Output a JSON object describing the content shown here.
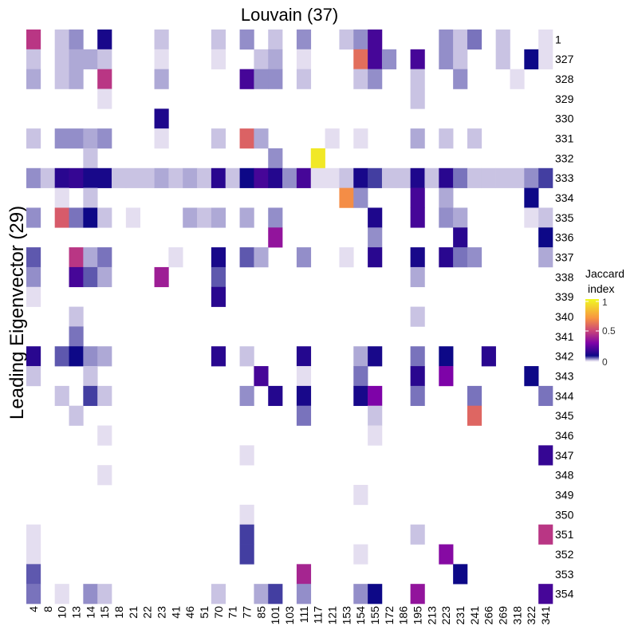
{
  "chart_data": {
    "type": "heatmap",
    "title": "Louvain (37)",
    "ylabel": "Leading Eigenvector (29)",
    "xlabel": "",
    "x_categories": [
      "4",
      "8",
      "10",
      "13",
      "14",
      "15",
      "18",
      "21",
      "22",
      "23",
      "41",
      "46",
      "51",
      "70",
      "71",
      "77",
      "85",
      "101",
      "103",
      "111",
      "117",
      "121",
      "153",
      "154",
      "155",
      "172",
      "186",
      "195",
      "213",
      "223",
      "231",
      "241",
      "266",
      "269",
      "318",
      "322",
      "341"
    ],
    "y_categories": [
      "1",
      "327",
      "328",
      "329",
      "330",
      "331",
      "332",
      "333",
      "334",
      "335",
      "336",
      "337",
      "338",
      "339",
      "340",
      "341",
      "342",
      "343",
      "344",
      "345",
      "346",
      "347",
      "348",
      "349",
      "350",
      "351",
      "352",
      "353",
      "354"
    ],
    "legend": {
      "title_line1": "Jaccard",
      "title_line2": "index",
      "ticks": [
        "1",
        "0.5",
        "0"
      ],
      "range": [
        0,
        1
      ]
    },
    "grid": false,
    "cells": [
      {
        "y": "1",
        "x": "4",
        "v": 0.45
      },
      {
        "y": "1",
        "x": "10",
        "v": 0.03
      },
      {
        "y": "1",
        "x": "13",
        "v": 0.05
      },
      {
        "y": "1",
        "x": "15",
        "v": 0.12
      },
      {
        "y": "1",
        "x": "23",
        "v": 0.03
      },
      {
        "y": "1",
        "x": "70",
        "v": 0.03
      },
      {
        "y": "1",
        "x": "77",
        "v": 0.05
      },
      {
        "y": "1",
        "x": "101",
        "v": 0.03
      },
      {
        "y": "1",
        "x": "111",
        "v": 0.05
      },
      {
        "y": "1",
        "x": "153",
        "v": 0.03
      },
      {
        "y": "1",
        "x": "154",
        "v": 0.05
      },
      {
        "y": "1",
        "x": "155",
        "v": 0.2
      },
      {
        "y": "1",
        "x": "223",
        "v": 0.05
      },
      {
        "y": "1",
        "x": "231",
        "v": 0.03
      },
      {
        "y": "1",
        "x": "241",
        "v": 0.06
      },
      {
        "y": "1",
        "x": "269",
        "v": 0.03
      },
      {
        "y": "1",
        "x": "341",
        "v": 0.02
      },
      {
        "y": "327",
        "x": "4",
        "v": 0.03
      },
      {
        "y": "327",
        "x": "10",
        "v": 0.03
      },
      {
        "y": "327",
        "x": "13",
        "v": 0.04
      },
      {
        "y": "327",
        "x": "14",
        "v": 0.04
      },
      {
        "y": "327",
        "x": "15",
        "v": 0.03
      },
      {
        "y": "327",
        "x": "23",
        "v": 0.02
      },
      {
        "y": "327",
        "x": "70",
        "v": 0.02
      },
      {
        "y": "327",
        "x": "85",
        "v": 0.03
      },
      {
        "y": "327",
        "x": "101",
        "v": 0.04
      },
      {
        "y": "327",
        "x": "111",
        "v": 0.02
      },
      {
        "y": "327",
        "x": "154",
        "v": 0.6
      },
      {
        "y": "327",
        "x": "155",
        "v": 0.2
      },
      {
        "y": "327",
        "x": "172",
        "v": 0.05
      },
      {
        "y": "327",
        "x": "195",
        "v": 0.2
      },
      {
        "y": "327",
        "x": "223",
        "v": 0.05
      },
      {
        "y": "327",
        "x": "231",
        "v": 0.03
      },
      {
        "y": "327",
        "x": "269",
        "v": 0.03
      },
      {
        "y": "327",
        "x": "322",
        "v": 0.1
      },
      {
        "y": "327",
        "x": "341",
        "v": 0.02
      },
      {
        "y": "328",
        "x": "4",
        "v": 0.04
      },
      {
        "y": "328",
        "x": "10",
        "v": 0.03
      },
      {
        "y": "328",
        "x": "13",
        "v": 0.04
      },
      {
        "y": "328",
        "x": "15",
        "v": 0.45
      },
      {
        "y": "328",
        "x": "23",
        "v": 0.04
      },
      {
        "y": "328",
        "x": "77",
        "v": 0.2
      },
      {
        "y": "328",
        "x": "85",
        "v": 0.05
      },
      {
        "y": "328",
        "x": "101",
        "v": 0.05
      },
      {
        "y": "328",
        "x": "111",
        "v": 0.03
      },
      {
        "y": "328",
        "x": "154",
        "v": 0.03
      },
      {
        "y": "328",
        "x": "155",
        "v": 0.05
      },
      {
        "y": "328",
        "x": "195",
        "v": 0.03
      },
      {
        "y": "328",
        "x": "231",
        "v": 0.05
      },
      {
        "y": "328",
        "x": "318",
        "v": 0.02
      },
      {
        "y": "329",
        "x": "15",
        "v": 0.02
      },
      {
        "y": "329",
        "x": "195",
        "v": 0.03
      },
      {
        "y": "330",
        "x": "23",
        "v": 0.13
      },
      {
        "y": "331",
        "x": "4",
        "v": 0.03
      },
      {
        "y": "331",
        "x": "10",
        "v": 0.05
      },
      {
        "y": "331",
        "x": "13",
        "v": 0.05
      },
      {
        "y": "331",
        "x": "14",
        "v": 0.04
      },
      {
        "y": "331",
        "x": "15",
        "v": 0.05
      },
      {
        "y": "331",
        "x": "23",
        "v": 0.02
      },
      {
        "y": "331",
        "x": "70",
        "v": 0.03
      },
      {
        "y": "331",
        "x": "77",
        "v": 0.57
      },
      {
        "y": "331",
        "x": "85",
        "v": 0.04
      },
      {
        "y": "331",
        "x": "121",
        "v": 0.02
      },
      {
        "y": "331",
        "x": "154",
        "v": 0.02
      },
      {
        "y": "331",
        "x": "195",
        "v": 0.04
      },
      {
        "y": "331",
        "x": "223",
        "v": 0.03
      },
      {
        "y": "331",
        "x": "241",
        "v": 0.03
      },
      {
        "y": "332",
        "x": "14",
        "v": 0.03
      },
      {
        "y": "332",
        "x": "101",
        "v": 0.05
      },
      {
        "y": "332",
        "x": "117",
        "v": 0.95
      },
      {
        "y": "333",
        "x": "4",
        "v": 0.05
      },
      {
        "y": "333",
        "x": "8",
        "v": 0.03
      },
      {
        "y": "333",
        "x": "10",
        "v": 0.15
      },
      {
        "y": "333",
        "x": "13",
        "v": 0.17
      },
      {
        "y": "333",
        "x": "14",
        "v": 0.12
      },
      {
        "y": "333",
        "x": "15",
        "v": 0.12
      },
      {
        "y": "333",
        "x": "18",
        "v": 0.03
      },
      {
        "y": "333",
        "x": "21",
        "v": 0.03
      },
      {
        "y": "333",
        "x": "22",
        "v": 0.03
      },
      {
        "y": "333",
        "x": "23",
        "v": 0.04
      },
      {
        "y": "333",
        "x": "41",
        "v": 0.03
      },
      {
        "y": "333",
        "x": "46",
        "v": 0.04
      },
      {
        "y": "333",
        "x": "51",
        "v": 0.03
      },
      {
        "y": "333",
        "x": "70",
        "v": 0.15
      },
      {
        "y": "333",
        "x": "71",
        "v": 0.03
      },
      {
        "y": "333",
        "x": "77",
        "v": 0.1
      },
      {
        "y": "333",
        "x": "85",
        "v": 0.2
      },
      {
        "y": "333",
        "x": "101",
        "v": 0.14
      },
      {
        "y": "333",
        "x": "103",
        "v": 0.05
      },
      {
        "y": "333",
        "x": "111",
        "v": 0.2
      },
      {
        "y": "333",
        "x": "117",
        "v": 0.02
      },
      {
        "y": "333",
        "x": "121",
        "v": 0.02
      },
      {
        "y": "333",
        "x": "153",
        "v": 0.03
      },
      {
        "y": "333",
        "x": "154",
        "v": 0.12
      },
      {
        "y": "333",
        "x": "155",
        "v": 0.08
      },
      {
        "y": "333",
        "x": "172",
        "v": 0.03
      },
      {
        "y": "333",
        "x": "186",
        "v": 0.03
      },
      {
        "y": "333",
        "x": "195",
        "v": 0.13
      },
      {
        "y": "333",
        "x": "213",
        "v": 0.03
      },
      {
        "y": "333",
        "x": "223",
        "v": 0.15
      },
      {
        "y": "333",
        "x": "231",
        "v": 0.06
      },
      {
        "y": "333",
        "x": "241",
        "v": 0.03
      },
      {
        "y": "333",
        "x": "266",
        "v": 0.03
      },
      {
        "y": "333",
        "x": "269",
        "v": 0.03
      },
      {
        "y": "333",
        "x": "318",
        "v": 0.03
      },
      {
        "y": "333",
        "x": "322",
        "v": 0.05
      },
      {
        "y": "333",
        "x": "341",
        "v": 0.08
      },
      {
        "y": "334",
        "x": "10",
        "v": 0.02
      },
      {
        "y": "334",
        "x": "14",
        "v": 0.03
      },
      {
        "y": "334",
        "x": "153",
        "v": 0.68
      },
      {
        "y": "334",
        "x": "154",
        "v": 0.05
      },
      {
        "y": "334",
        "x": "195",
        "v": 0.2
      },
      {
        "y": "334",
        "x": "223",
        "v": 0.04
      },
      {
        "y": "334",
        "x": "322",
        "v": 0.1
      },
      {
        "y": "335",
        "x": "4",
        "v": 0.05
      },
      {
        "y": "335",
        "x": "10",
        "v": 0.55
      },
      {
        "y": "335",
        "x": "13",
        "v": 0.06
      },
      {
        "y": "335",
        "x": "14",
        "v": 0.1
      },
      {
        "y": "335",
        "x": "15",
        "v": 0.03
      },
      {
        "y": "335",
        "x": "21",
        "v": 0.02
      },
      {
        "y": "335",
        "x": "46",
        "v": 0.04
      },
      {
        "y": "335",
        "x": "51",
        "v": 0.03
      },
      {
        "y": "335",
        "x": "70",
        "v": 0.04
      },
      {
        "y": "335",
        "x": "77",
        "v": 0.04
      },
      {
        "y": "335",
        "x": "101",
        "v": 0.05
      },
      {
        "y": "335",
        "x": "155",
        "v": 0.13
      },
      {
        "y": "335",
        "x": "195",
        "v": 0.2
      },
      {
        "y": "335",
        "x": "223",
        "v": 0.05
      },
      {
        "y": "335",
        "x": "231",
        "v": 0.04
      },
      {
        "y": "335",
        "x": "322",
        "v": 0.02
      },
      {
        "y": "335",
        "x": "341",
        "v": 0.03
      },
      {
        "y": "336",
        "x": "101",
        "v": 0.35
      },
      {
        "y": "336",
        "x": "155",
        "v": 0.05
      },
      {
        "y": "336",
        "x": "231",
        "v": 0.15
      },
      {
        "y": "336",
        "x": "341",
        "v": 0.1
      },
      {
        "y": "337",
        "x": "4",
        "v": 0.07
      },
      {
        "y": "337",
        "x": "13",
        "v": 0.45
      },
      {
        "y": "337",
        "x": "14",
        "v": 0.04
      },
      {
        "y": "337",
        "x": "15",
        "v": 0.06
      },
      {
        "y": "337",
        "x": "41",
        "v": 0.02
      },
      {
        "y": "337",
        "x": "70",
        "v": 0.12
      },
      {
        "y": "337",
        "x": "77",
        "v": 0.07
      },
      {
        "y": "337",
        "x": "85",
        "v": 0.04
      },
      {
        "y": "337",
        "x": "111",
        "v": 0.05
      },
      {
        "y": "337",
        "x": "153",
        "v": 0.02
      },
      {
        "y": "337",
        "x": "155",
        "v": 0.15
      },
      {
        "y": "337",
        "x": "195",
        "v": 0.12
      },
      {
        "y": "337",
        "x": "223",
        "v": 0.15
      },
      {
        "y": "337",
        "x": "231",
        "v": 0.06
      },
      {
        "y": "337",
        "x": "241",
        "v": 0.05
      },
      {
        "y": "337",
        "x": "341",
        "v": 0.04
      },
      {
        "y": "338",
        "x": "4",
        "v": 0.05
      },
      {
        "y": "338",
        "x": "13",
        "v": 0.2
      },
      {
        "y": "338",
        "x": "14",
        "v": 0.07
      },
      {
        "y": "338",
        "x": "15",
        "v": 0.04
      },
      {
        "y": "338",
        "x": "23",
        "v": 0.38
      },
      {
        "y": "338",
        "x": "70",
        "v": 0.07
      },
      {
        "y": "338",
        "x": "195",
        "v": 0.04
      },
      {
        "y": "339",
        "x": "4",
        "v": 0.02
      },
      {
        "y": "339",
        "x": "70",
        "v": 0.15
      },
      {
        "y": "340",
        "x": "13",
        "v": 0.03
      },
      {
        "y": "340",
        "x": "195",
        "v": 0.03
      },
      {
        "y": "341",
        "x": "13",
        "v": 0.06
      },
      {
        "y": "342",
        "x": "4",
        "v": 0.15
      },
      {
        "y": "342",
        "x": "10",
        "v": 0.07
      },
      {
        "y": "342",
        "x": "13",
        "v": 0.1
      },
      {
        "y": "342",
        "x": "14",
        "v": 0.05
      },
      {
        "y": "342",
        "x": "15",
        "v": 0.04
      },
      {
        "y": "342",
        "x": "70",
        "v": 0.15
      },
      {
        "y": "342",
        "x": "77",
        "v": 0.03
      },
      {
        "y": "342",
        "x": "111",
        "v": 0.14
      },
      {
        "y": "342",
        "x": "154",
        "v": 0.04
      },
      {
        "y": "342",
        "x": "155",
        "v": 0.12
      },
      {
        "y": "342",
        "x": "195",
        "v": 0.06
      },
      {
        "y": "342",
        "x": "223",
        "v": 0.1
      },
      {
        "y": "342",
        "x": "266",
        "v": 0.15
      },
      {
        "y": "343",
        "x": "4",
        "v": 0.03
      },
      {
        "y": "343",
        "x": "14",
        "v": 0.03
      },
      {
        "y": "343",
        "x": "85",
        "v": 0.2
      },
      {
        "y": "343",
        "x": "111",
        "v": 0.02
      },
      {
        "y": "343",
        "x": "154",
        "v": 0.06
      },
      {
        "y": "343",
        "x": "195",
        "v": 0.15
      },
      {
        "y": "343",
        "x": "223",
        "v": 0.3
      },
      {
        "y": "343",
        "x": "322",
        "v": 0.1
      },
      {
        "y": "344",
        "x": "10",
        "v": 0.03
      },
      {
        "y": "344",
        "x": "14",
        "v": 0.08
      },
      {
        "y": "344",
        "x": "15",
        "v": 0.03
      },
      {
        "y": "344",
        "x": "77",
        "v": 0.05
      },
      {
        "y": "344",
        "x": "101",
        "v": 0.14
      },
      {
        "y": "344",
        "x": "111",
        "v": 0.12
      },
      {
        "y": "344",
        "x": "154",
        "v": 0.12
      },
      {
        "y": "344",
        "x": "155",
        "v": 0.3
      },
      {
        "y": "344",
        "x": "195",
        "v": 0.06
      },
      {
        "y": "344",
        "x": "241",
        "v": 0.06
      },
      {
        "y": "344",
        "x": "341",
        "v": 0.06
      },
      {
        "y": "345",
        "x": "13",
        "v": 0.03
      },
      {
        "y": "345",
        "x": "111",
        "v": 0.06
      },
      {
        "y": "345",
        "x": "155",
        "v": 0.03
      },
      {
        "y": "345",
        "x": "241",
        "v": 0.58
      },
      {
        "y": "346",
        "x": "15",
        "v": 0.02
      },
      {
        "y": "346",
        "x": "155",
        "v": 0.02
      },
      {
        "y": "347",
        "x": "77",
        "v": 0.02
      },
      {
        "y": "347",
        "x": "341",
        "v": 0.17
      },
      {
        "y": "348",
        "x": "15",
        "v": 0.02
      },
      {
        "y": "349",
        "x": "154",
        "v": 0.02
      },
      {
        "y": "350",
        "x": "77",
        "v": 0.02
      },
      {
        "y": "351",
        "x": "4",
        "v": 0.02
      },
      {
        "y": "351",
        "x": "77",
        "v": 0.08
      },
      {
        "y": "351",
        "x": "195",
        "v": 0.03
      },
      {
        "y": "351",
        "x": "341",
        "v": 0.45
      },
      {
        "y": "352",
        "x": "4",
        "v": 0.02
      },
      {
        "y": "352",
        "x": "77",
        "v": 0.08
      },
      {
        "y": "352",
        "x": "154",
        "v": 0.02
      },
      {
        "y": "352",
        "x": "223",
        "v": 0.32
      },
      {
        "y": "353",
        "x": "4",
        "v": 0.07
      },
      {
        "y": "353",
        "x": "111",
        "v": 0.4
      },
      {
        "y": "353",
        "x": "231",
        "v": 0.1
      },
      {
        "y": "354",
        "x": "4",
        "v": 0.06
      },
      {
        "y": "354",
        "x": "10",
        "v": 0.02
      },
      {
        "y": "354",
        "x": "14",
        "v": 0.05
      },
      {
        "y": "354",
        "x": "15",
        "v": 0.03
      },
      {
        "y": "354",
        "x": "70",
        "v": 0.03
      },
      {
        "y": "354",
        "x": "85",
        "v": 0.04
      },
      {
        "y": "354",
        "x": "101",
        "v": 0.08
      },
      {
        "y": "354",
        "x": "111",
        "v": 0.05
      },
      {
        "y": "354",
        "x": "154",
        "v": 0.05
      },
      {
        "y": "354",
        "x": "155",
        "v": 0.1
      },
      {
        "y": "354",
        "x": "195",
        "v": 0.35
      },
      {
        "y": "354",
        "x": "341",
        "v": 0.2
      }
    ]
  }
}
